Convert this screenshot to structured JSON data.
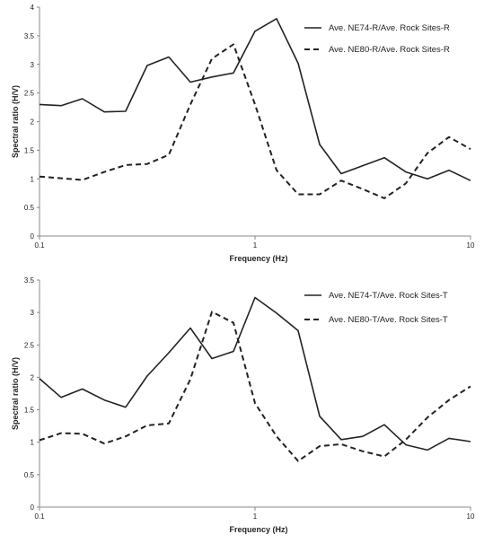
{
  "chart_data": [
    {
      "type": "line",
      "xlabel": "Frequency (Hz)",
      "ylabel": "Spectral ratio (H/V)",
      "xscale": "log",
      "xlim": [
        0.1,
        10
      ],
      "ylim": [
        0,
        4
      ],
      "yticks": [
        "0",
        "0.5",
        "1",
        "1.5",
        "2",
        "2.5",
        "3",
        "3.5",
        "4"
      ],
      "xticks": [
        "0.1",
        "1",
        "10"
      ],
      "grid": false,
      "legend_position": "top-right",
      "series": [
        {
          "name": "Ave. NE74-R/Ave. Rock Sites-R",
          "style": "solid",
          "x": [
            0.1,
            0.126,
            0.158,
            0.2,
            0.251,
            0.316,
            0.398,
            0.501,
            0.631,
            0.794,
            1.0,
            1.259,
            1.585,
            1.995,
            2.512,
            3.162,
            3.981,
            5.012,
            6.31,
            7.943,
            10.0
          ],
          "y": [
            2.3,
            2.28,
            2.4,
            2.17,
            2.18,
            2.98,
            3.13,
            2.69,
            2.78,
            2.85,
            3.58,
            3.8,
            3.02,
            1.6,
            1.09,
            1.23,
            1.37,
            1.12,
            1.0,
            1.15,
            0.97
          ]
        },
        {
          "name": "Ave. NE80-R/Ave. Rock Sites-R",
          "style": "dashed",
          "x": [
            0.1,
            0.126,
            0.158,
            0.2,
            0.251,
            0.316,
            0.398,
            0.501,
            0.631,
            0.794,
            1.0,
            1.259,
            1.585,
            1.995,
            2.512,
            3.162,
            3.981,
            5.012,
            6.31,
            7.943,
            10.0
          ],
          "y": [
            1.04,
            1.01,
            0.98,
            1.12,
            1.24,
            1.26,
            1.42,
            2.3,
            3.1,
            3.35,
            2.3,
            1.15,
            0.73,
            0.73,
            0.97,
            0.82,
            0.66,
            0.92,
            1.45,
            1.73,
            1.52
          ]
        }
      ]
    },
    {
      "type": "line",
      "xlabel": "Frequency (Hz)",
      "ylabel": "Spectral ratio (H/V)",
      "xscale": "log",
      "xlim": [
        0.1,
        10
      ],
      "ylim": [
        0,
        3.5
      ],
      "yticks": [
        "0",
        "0.5",
        "1",
        "1.5",
        "2",
        "2.5",
        "3",
        "3.5"
      ],
      "xticks": [
        "0.1",
        "1",
        "10"
      ],
      "grid": false,
      "legend_position": "top-right",
      "series": [
        {
          "name": "Ave. NE74-T/Ave. Rock Sites-T",
          "style": "solid",
          "x": [
            0.1,
            0.126,
            0.158,
            0.2,
            0.251,
            0.316,
            0.398,
            0.501,
            0.631,
            0.794,
            1.0,
            1.259,
            1.585,
            1.995,
            2.512,
            3.162,
            3.981,
            5.012,
            6.31,
            7.943,
            10.0
          ],
          "y": [
            1.98,
            1.69,
            1.82,
            1.65,
            1.54,
            2.02,
            2.38,
            2.76,
            2.29,
            2.4,
            3.23,
            2.99,
            2.72,
            1.4,
            1.04,
            1.09,
            1.27,
            0.96,
            0.88,
            1.06,
            1.01
          ]
        },
        {
          "name": "Ave. NE80-T/Ave. Rock Sites-T",
          "style": "dashed",
          "x": [
            0.1,
            0.126,
            0.158,
            0.2,
            0.251,
            0.316,
            0.398,
            0.501,
            0.631,
            0.794,
            1.0,
            1.259,
            1.585,
            1.995,
            2.512,
            3.162,
            3.981,
            5.012,
            6.31,
            7.943,
            10.0
          ],
          "y": [
            1.03,
            1.14,
            1.13,
            0.98,
            1.09,
            1.26,
            1.29,
            1.97,
            3.01,
            2.84,
            1.6,
            1.09,
            0.71,
            0.94,
            0.97,
            0.86,
            0.78,
            1.04,
            1.38,
            1.65,
            1.86
          ]
        }
      ]
    }
  ]
}
